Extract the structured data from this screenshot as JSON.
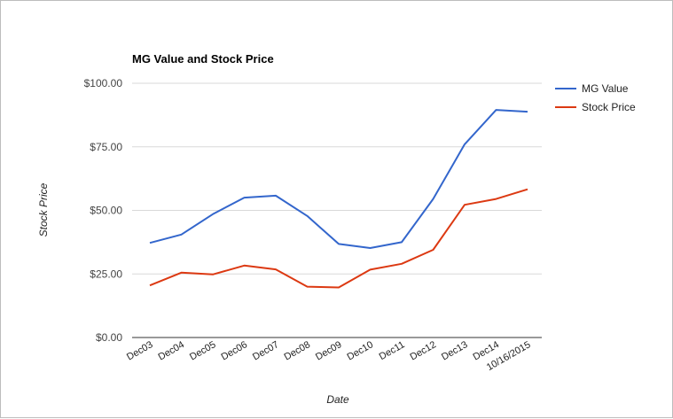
{
  "chart_data": {
    "type": "line",
    "title": "MG Value and Stock Price",
    "xlabel": "Date",
    "ylabel": "Stock Price",
    "ylim": [
      0,
      100
    ],
    "yticks": [
      "$0.00",
      "$25.00",
      "$50.00",
      "$75.00",
      "$100.00"
    ],
    "ytick_values": [
      0,
      25,
      50,
      75,
      100
    ],
    "grid": true,
    "legend_position": "right",
    "categories": [
      "Dec03",
      "Dec04",
      "Dec05",
      "Dec06",
      "Dec07",
      "Dec08",
      "Dec09",
      "Dec10",
      "Dec11",
      "Dec12",
      "Dec13",
      "Dec14",
      "10/16/2015"
    ],
    "series": [
      {
        "name": "MG Value",
        "color": "#3366cc",
        "values": [
          37.2,
          40.5,
          48.5,
          55.0,
          55.8,
          47.8,
          36.8,
          35.2,
          37.5,
          54.5,
          76.0,
          89.5,
          88.8
        ]
      },
      {
        "name": "Stock Price",
        "color": "#dc3912",
        "values": [
          20.5,
          25.5,
          24.8,
          28.3,
          26.8,
          20.0,
          19.7,
          26.7,
          29.0,
          34.5,
          52.2,
          54.5,
          58.3
        ]
      }
    ]
  }
}
